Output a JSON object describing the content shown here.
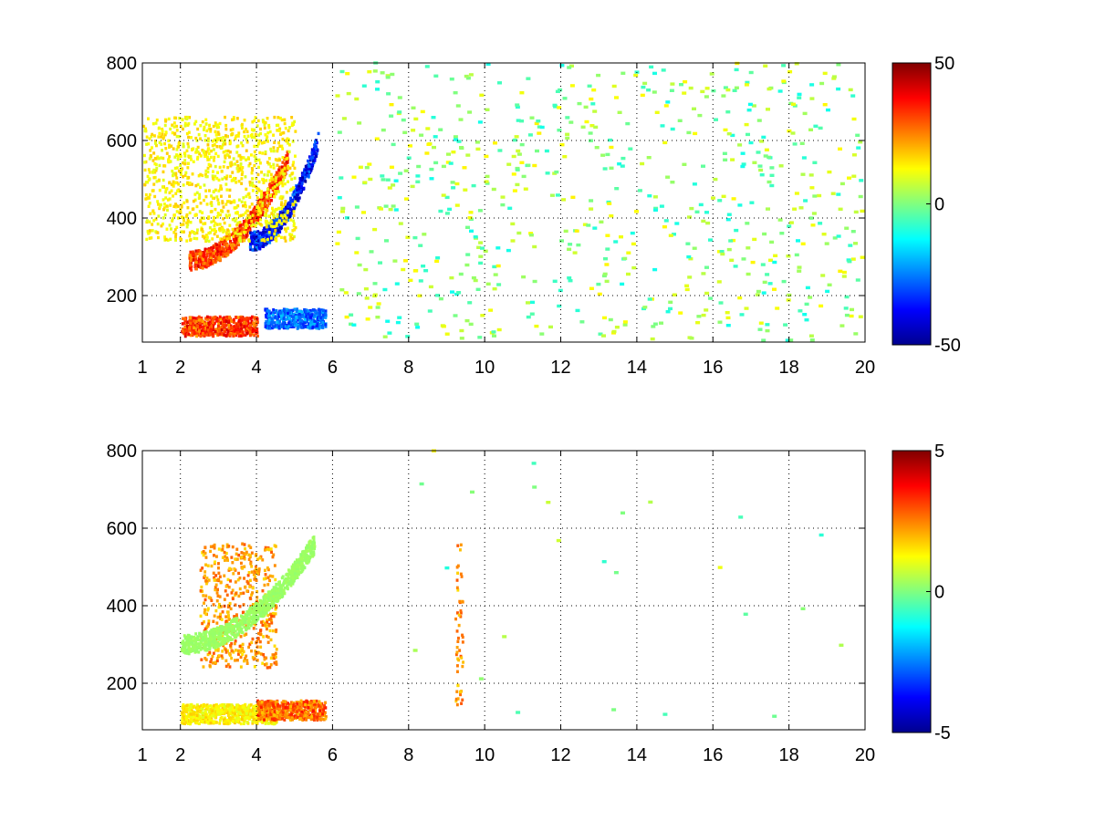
{
  "chart_data": [
    {
      "type": "heatmap",
      "title": "",
      "xlabel": "",
      "ylabel": "",
      "xlim": [
        1,
        20
      ],
      "ylim": [
        80,
        800
      ],
      "x_ticks": [
        "1",
        "2",
        "4",
        "6",
        "8",
        "10",
        "12",
        "14",
        "16",
        "18",
        "20"
      ],
      "y_ticks": [
        "200",
        "400",
        "600",
        "800"
      ],
      "grid": true,
      "colormap": "jet",
      "color_range": [
        -50,
        50
      ],
      "colorbar_ticks": [
        "50",
        "0",
        "-50"
      ],
      "features": [
        {
          "x_range": [
            2.2,
            4.8
          ],
          "y_center": 290,
          "value": 35,
          "description": "curved band"
        },
        {
          "x_range": [
            3.8,
            5.6
          ],
          "y_center": 340,
          "value": -40,
          "description": "curved band"
        },
        {
          "x_range": [
            2.0,
            4.0
          ],
          "y_center": 120,
          "value": 35,
          "description": "lower band"
        },
        {
          "x_range": [
            4.2,
            5.8
          ],
          "y_center": 140,
          "value": -30,
          "description": "lower band"
        },
        {
          "x_range": [
            1.0,
            5.0
          ],
          "y_center": 500,
          "value": 15,
          "description": "diffuse region"
        }
      ]
    },
    {
      "type": "heatmap",
      "title": "",
      "xlabel": "",
      "ylabel": "",
      "xlim": [
        1,
        20
      ],
      "ylim": [
        80,
        800
      ],
      "x_ticks": [
        "1",
        "2",
        "4",
        "6",
        "8",
        "10",
        "12",
        "14",
        "16",
        "18",
        "20"
      ],
      "y_ticks": [
        "200",
        "400",
        "600",
        "800"
      ],
      "grid": true,
      "colormap": "jet",
      "color_range": [
        -5,
        5
      ],
      "colorbar_ticks": [
        "5",
        "0",
        "-5"
      ],
      "features": [
        {
          "x_range": [
            2.5,
            4.5
          ],
          "y_center": 400,
          "value": 2.5,
          "description": "upper cluster"
        },
        {
          "x_range": [
            2.0,
            5.5
          ],
          "y_center": 300,
          "value": 0.3,
          "description": "curved band"
        },
        {
          "x_range": [
            2.0,
            4.5
          ],
          "y_center": 120,
          "value": 1.5,
          "description": "lower band"
        },
        {
          "x_range": [
            4.0,
            5.8
          ],
          "y_center": 130,
          "value": 3.0,
          "description": "lower band"
        },
        {
          "x_range": [
            9.2,
            9.4
          ],
          "y_center": 350,
          "value": 2.5,
          "description": "isolated column"
        }
      ]
    }
  ]
}
